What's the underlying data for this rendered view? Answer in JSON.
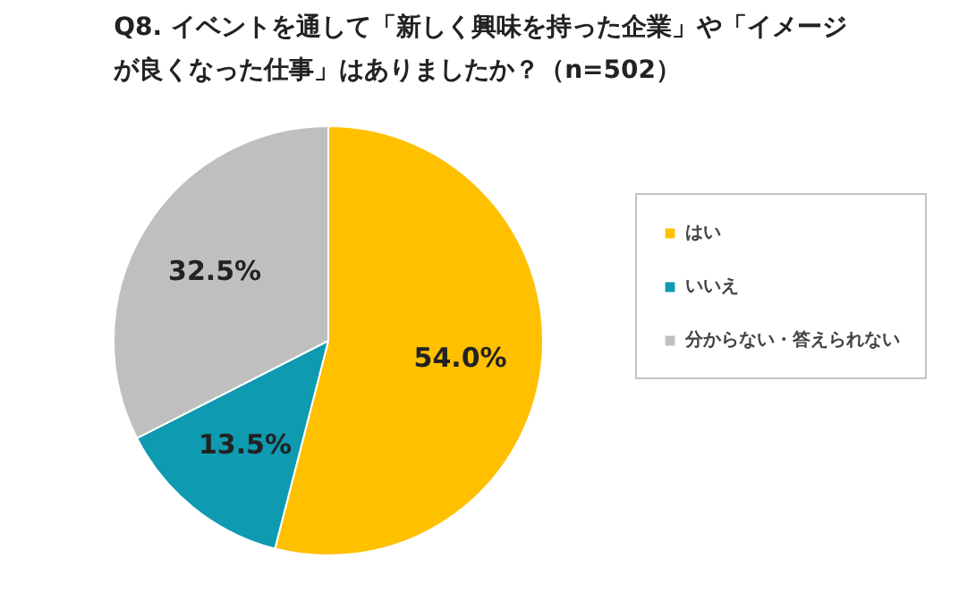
{
  "chart_data": {
    "type": "pie",
    "title": "Q8. イベントを通して「新しく興味を持った企業」や「イメージが良くなった仕事」はありましたか？（n=502）",
    "categories": [
      "はい",
      "いいえ",
      "分からない・答えられない"
    ],
    "values": [
      54.0,
      13.5,
      32.5
    ],
    "colors": [
      "#ffc000",
      "#0e9ab0",
      "#bfbfbf"
    ],
    "value_labels": [
      "54.0%",
      "13.5%",
      "32.5%"
    ],
    "legend": "right"
  }
}
